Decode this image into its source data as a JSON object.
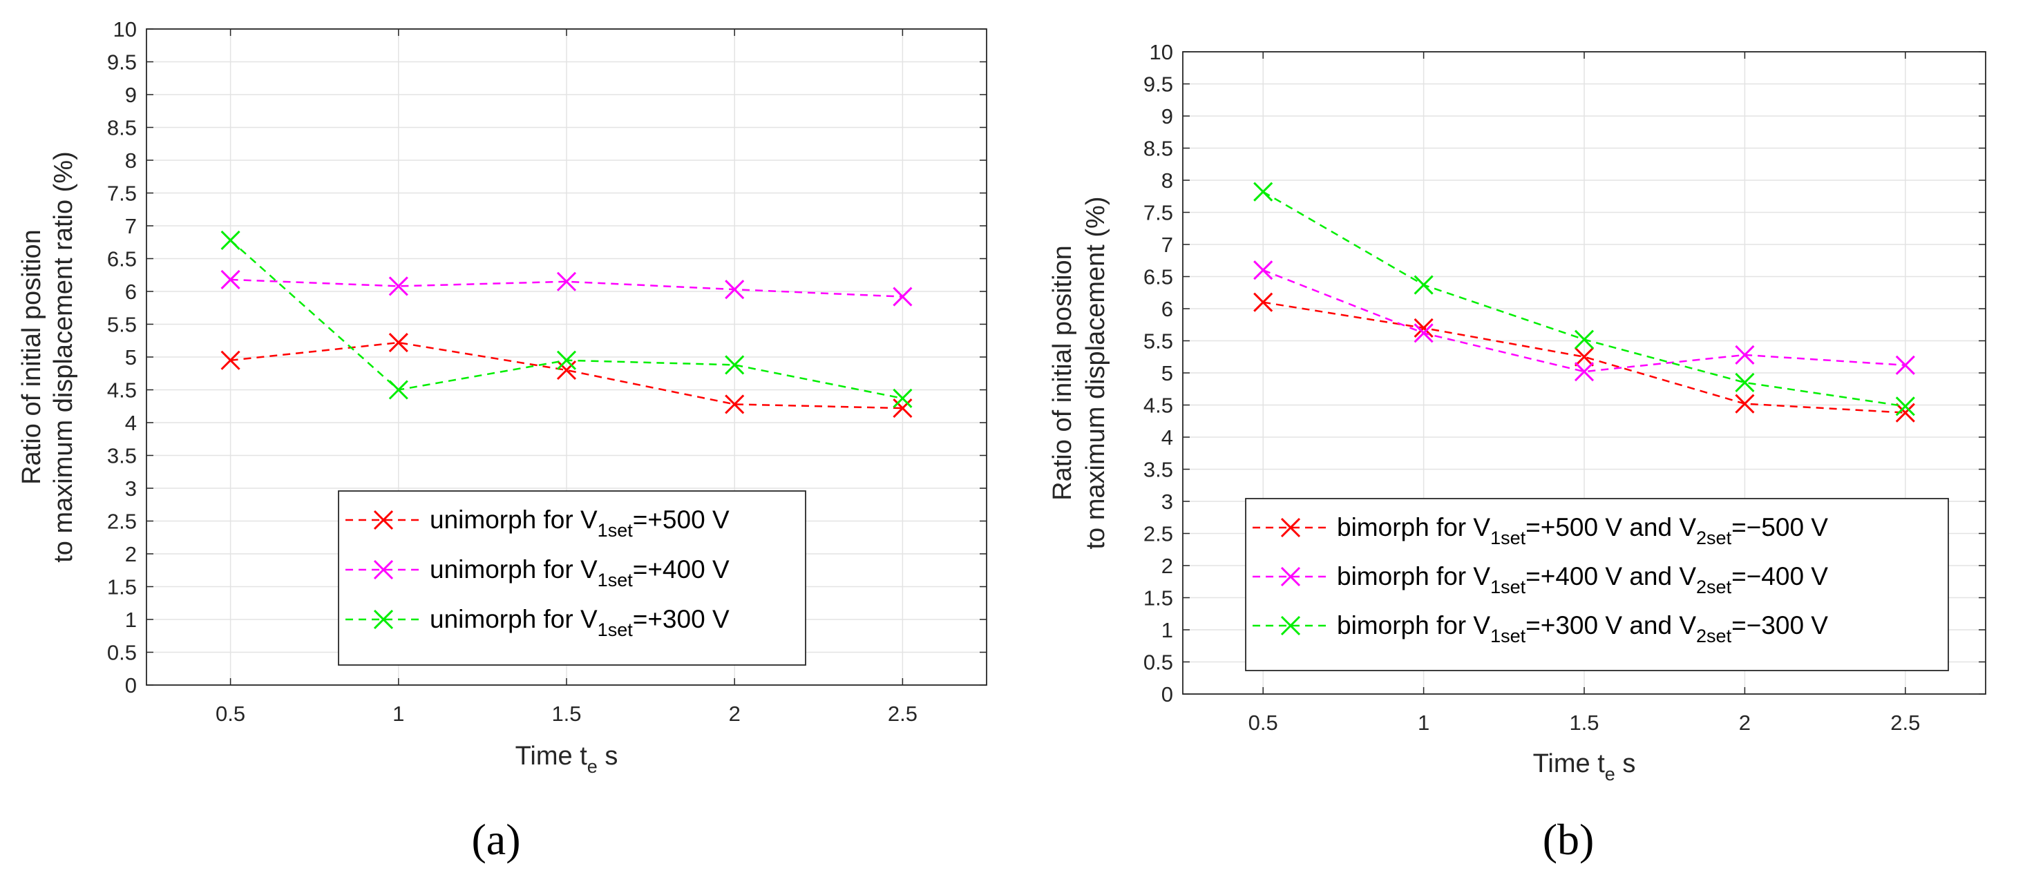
{
  "chart_data": [
    {
      "type": "line",
      "panel_label": "(a)",
      "xlabel_pre": "Time t",
      "xlabel_sub": "e",
      "xlabel_post": " s",
      "ylabel_line1": "Ratio of initial position",
      "ylabel_line2": "to maximum displacement ratio (%)",
      "x": [
        0.5,
        1,
        1.5,
        2,
        2.5
      ],
      "xticklabels": [
        "0.5",
        "1",
        "1.5",
        "2",
        "2.5"
      ],
      "xlim": [
        0.25,
        2.75
      ],
      "ylim": [
        0,
        10
      ],
      "yticklabels": [
        "0",
        "0.5",
        "1",
        "1.5",
        "2",
        "2.5",
        "3",
        "3.5",
        "4",
        "4.5",
        "5",
        "5.5",
        "6",
        "6.5",
        "7",
        "7.5",
        "8",
        "8.5",
        "9",
        "9.5",
        "10"
      ],
      "grid": true,
      "legend_position": "lower-right",
      "series": [
        {
          "name": "unimorph for V1set=+500 V",
          "color": "#ff0000",
          "legend": {
            "pre": "unimorph for V",
            "sub": "1set",
            "post": "=+500 V"
          },
          "values": [
            4.95,
            5.22,
            4.8,
            4.28,
            4.22
          ]
        },
        {
          "name": "unimorph for V1set=+400 V",
          "color": "#ff00ff",
          "legend": {
            "pre": "unimorph for V",
            "sub": "1set",
            "post": "=+400 V"
          },
          "values": [
            6.18,
            6.08,
            6.15,
            6.03,
            5.92
          ]
        },
        {
          "name": "unimorph for V1set=+300 V",
          "color": "#00ee00",
          "legend": {
            "pre": "unimorph for V",
            "sub": "1set",
            "post": "=+300 V"
          },
          "values": [
            6.78,
            4.5,
            4.95,
            4.88,
            4.37
          ]
        }
      ]
    },
    {
      "type": "line",
      "panel_label": "(b)",
      "xlabel_pre": "Time t",
      "xlabel_sub": "e",
      "xlabel_post": " s",
      "ylabel_line1": "Ratio of initial position",
      "ylabel_line2": "to maximum displacement (%)",
      "x": [
        0.5,
        1,
        1.5,
        2,
        2.5
      ],
      "xticklabels": [
        "0.5",
        "1",
        "1.5",
        "2",
        "2.5"
      ],
      "xlim": [
        0.25,
        2.75
      ],
      "ylim": [
        0,
        10
      ],
      "yticklabels": [
        "0",
        "0.5",
        "1",
        "1.5",
        "2",
        "2.5",
        "3",
        "3.5",
        "4",
        "4.5",
        "5",
        "5.5",
        "6",
        "6.5",
        "7",
        "7.5",
        "8",
        "8.5",
        "9",
        "9.5",
        "10"
      ],
      "grid": true,
      "legend_position": "lower-right",
      "series": [
        {
          "name": "bimorph for V1set=+500 V and V2set=−500 V",
          "color": "#ff0000",
          "legend": {
            "pre": "bimorph for V",
            "sub": "1set",
            "mid": "=+500 V and V",
            "sub2": "2set",
            "post": "=−500 V"
          },
          "values": [
            6.1,
            5.7,
            5.25,
            4.52,
            4.38
          ]
        },
        {
          "name": "bimorph for V1set=+400 V and V2set=−400 V",
          "color": "#ff00ff",
          "legend": {
            "pre": "bimorph for V",
            "sub": "1set",
            "mid": "=+400 V and V",
            "sub2": "2set",
            "post": "=−400 V"
          },
          "values": [
            6.6,
            5.62,
            5.02,
            5.28,
            5.12
          ]
        },
        {
          "name": "bimorph for V1set=+300 V and V2set=−300 V",
          "color": "#00ee00",
          "legend": {
            "pre": "bimorph for V",
            "sub": "1set",
            "mid": "=+300 V and V",
            "sub2": "2set",
            "post": "=−300 V"
          },
          "values": [
            7.82,
            6.37,
            5.52,
            4.85,
            4.48
          ]
        }
      ]
    }
  ]
}
